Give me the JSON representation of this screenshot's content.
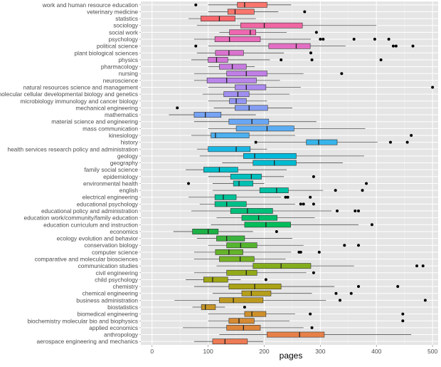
{
  "chart_data": {
    "type": "boxplot",
    "orientation": "horizontal",
    "xlabel": "pages",
    "ylabel": "",
    "xlim": [
      -20,
      510
    ],
    "x_ticks": [
      0,
      100,
      200,
      300,
      400,
      500
    ],
    "grid": true,
    "legend": "none",
    "panel_color": "#e5e5e5",
    "median_color": "#222222",
    "whisker_color": "#555555",
    "outlier_color": "#000000",
    "categories": [
      {
        "label": "work and human resource education",
        "q1": 152,
        "median": 165,
        "q3": 205,
        "lo": 100,
        "hi": 248,
        "outliers": [
          78
        ],
        "color": "#f8766d"
      },
      {
        "label": "veterinary medicine",
        "q1": 135,
        "median": 148,
        "q3": 182,
        "lo": 100,
        "hi": 225,
        "outliers": [
          272
        ],
        "color": "#f8766d"
      },
      {
        "label": "statistics",
        "q1": 87,
        "median": 120,
        "q3": 148,
        "lo": 65,
        "hi": 185,
        "outliers": [],
        "color": "#f7696e"
      },
      {
        "label": "sociology",
        "q1": 158,
        "median": 200,
        "q3": 268,
        "lo": 80,
        "hi": 400,
        "outliers": [],
        "color": "#f066a3"
      },
      {
        "label": "social work",
        "q1": 138,
        "median": 175,
        "q3": 185,
        "lo": 120,
        "hi": 240,
        "outliers": [
          293
        ],
        "color": "#ee67b0"
      },
      {
        "label": "psychology",
        "q1": 112,
        "median": 138,
        "q3": 193,
        "lo": 75,
        "hi": 283,
        "outliers": [
          300,
          305,
          360,
          397,
          422
        ],
        "color": "#e96dba"
      },
      {
        "label": "political science",
        "q1": 208,
        "median": 257,
        "q3": 282,
        "lo": 100,
        "hi": 345,
        "outliers": [
          78,
          430,
          435,
          465
        ],
        "color": "#e36fc4"
      },
      {
        "label": "plant biological sciences",
        "q1": 113,
        "median": 137,
        "q3": 163,
        "lo": 80,
        "hi": 235,
        "outliers": [
          283
        ],
        "color": "#da72cf"
      },
      {
        "label": "physics",
        "q1": 100,
        "median": 115,
        "q3": 135,
        "lo": 70,
        "hi": 210,
        "outliers": [
          230,
          285,
          408
        ],
        "color": "#d275d6"
      },
      {
        "label": "pharmacology",
        "q1": 120,
        "median": 143,
        "q3": 168,
        "lo": 100,
        "hi": 183,
        "outliers": [],
        "color": "#c77be0"
      },
      {
        "label": "nursing",
        "q1": 133,
        "median": 168,
        "q3": 205,
        "lo": 75,
        "hi": 270,
        "outliers": [
          338
        ],
        "color": "#c07fe5"
      },
      {
        "label": "neuroscience",
        "q1": 98,
        "median": 133,
        "q3": 186,
        "lo": 75,
        "hi": 228,
        "outliers": [],
        "color": "#b985ea"
      },
      {
        "label": "natural resources science and management",
        "q1": 148,
        "median": 168,
        "q3": 203,
        "lo": 100,
        "hi": 265,
        "outliers": [
          500
        ],
        "color": "#ad8bef"
      },
      {
        "label": "molecular cellular developmental biology and genetics",
        "q1": 128,
        "median": 153,
        "q3": 173,
        "lo": 90,
        "hi": 245,
        "outliers": [],
        "color": "#a08ff1"
      },
      {
        "label": "microbiology immunology and cancer biology",
        "q1": 138,
        "median": 150,
        "q3": 168,
        "lo": 100,
        "hi": 205,
        "outliers": [],
        "color": "#9396f2"
      },
      {
        "label": "mechanical engineering",
        "q1": 148,
        "median": 173,
        "q3": 206,
        "lo": 110,
        "hi": 250,
        "outliers": [
          45
        ],
        "color": "#859ef3"
      },
      {
        "label": "mathematics",
        "q1": 75,
        "median": 95,
        "q3": 123,
        "lo": 30,
        "hi": 185,
        "outliers": [],
        "color": "#76a3f4"
      },
      {
        "label": "material science and engineering",
        "q1": 137,
        "median": 178,
        "q3": 208,
        "lo": 75,
        "hi": 293,
        "outliers": [],
        "color": "#69a7f4"
      },
      {
        "label": "mass communication",
        "q1": 150,
        "median": 205,
        "q3": 253,
        "lo": 100,
        "hi": 380,
        "outliers": [],
        "color": "#5cacf3"
      },
      {
        "label": "kinesiology",
        "q1": 105,
        "median": 113,
        "q3": 173,
        "lo": 70,
        "hi": 255,
        "outliers": [
          462
        ],
        "color": "#4eb0ef"
      },
      {
        "label": "history",
        "q1": 275,
        "median": 297,
        "q3": 330,
        "lo": 188,
        "hi": 402,
        "outliers": [
          185,
          425,
          455
        ],
        "color": "#36b4ea"
      },
      {
        "label": "health services research policy and administration",
        "q1": 100,
        "median": 150,
        "q3": 175,
        "lo": 80,
        "hi": 205,
        "outliers": [],
        "color": "#1ab7e3"
      },
      {
        "label": "geology",
        "q1": 163,
        "median": 183,
        "q3": 257,
        "lo": 85,
        "hi": 378,
        "outliers": [],
        "color": "#00badb"
      },
      {
        "label": "geography",
        "q1": 180,
        "median": 218,
        "q3": 257,
        "lo": 125,
        "hi": 340,
        "outliers": [],
        "color": "#00bcd2"
      },
      {
        "label": "family social science",
        "q1": 92,
        "median": 120,
        "q3": 153,
        "lo": 60,
        "hi": 240,
        "outliers": [],
        "color": "#00bdc7"
      },
      {
        "label": "epidemiology",
        "q1": 140,
        "median": 177,
        "q3": 195,
        "lo": 100,
        "hi": 235,
        "outliers": [
          288
        ],
        "color": "#00bfbd"
      },
      {
        "label": "environmental health",
        "q1": 145,
        "median": 155,
        "q3": 180,
        "lo": 108,
        "hi": 200,
        "outliers": [
          65,
          382
        ],
        "color": "#00c0b1"
      },
      {
        "label": "english",
        "q1": 192,
        "median": 222,
        "q3": 243,
        "lo": 108,
        "hi": 305,
        "outliers": [
          327,
          375
        ],
        "color": "#00c1a4"
      },
      {
        "label": "electrical engineering",
        "q1": 112,
        "median": 127,
        "q3": 150,
        "lo": 65,
        "hi": 230,
        "outliers": [
          238,
          242,
          282
        ],
        "color": "#00c197"
      },
      {
        "label": "educational psychology",
        "q1": 112,
        "median": 133,
        "q3": 168,
        "lo": 85,
        "hi": 255,
        "outliers": [
          265,
          270,
          288
        ],
        "color": "#00c089"
      },
      {
        "label": "educational policy and administration",
        "q1": 140,
        "median": 170,
        "q3": 215,
        "lo": 70,
        "hi": 320,
        "outliers": [
          330,
          362,
          368
        ],
        "color": "#00bf7a"
      },
      {
        "label": "education work/community/family education",
        "q1": 160,
        "median": 190,
        "q3": 223,
        "lo": 115,
        "hi": 290,
        "outliers": [],
        "color": "#00be6a"
      },
      {
        "label": "education curriculum and instruction",
        "q1": 165,
        "median": 203,
        "q3": 247,
        "lo": 105,
        "hi": 368,
        "outliers": [
          392
        ],
        "color": "#00bc59"
      },
      {
        "label": "economics",
        "q1": 72,
        "median": 100,
        "q3": 118,
        "lo": 38,
        "hi": 180,
        "outliers": [
          222
        ],
        "color": "#1cb046"
      },
      {
        "label": "ecology evolution and behavior",
        "q1": 115,
        "median": 133,
        "q3": 165,
        "lo": 80,
        "hi": 250,
        "outliers": [],
        "color": "#3bb33c"
      },
      {
        "label": "conservation biology",
        "q1": 133,
        "median": 158,
        "q3": 187,
        "lo": 100,
        "hi": 270,
        "outliers": [
          343,
          368
        ],
        "color": "#54b52e"
      },
      {
        "label": "computer science",
        "q1": 113,
        "median": 137,
        "q3": 162,
        "lo": 75,
        "hi": 248,
        "outliers": [
          262,
          265,
          298
        ],
        "color": "#65b32a"
      },
      {
        "label": "comparative and molecular biosciences",
        "q1": 120,
        "median": 157,
        "q3": 182,
        "lo": 75,
        "hi": 238,
        "outliers": [],
        "color": "#75b124"
      },
      {
        "label": "communication studies",
        "q1": 180,
        "median": 230,
        "q3": 283,
        "lo": 115,
        "hi": 360,
        "outliers": [
          472,
          483
        ],
        "color": "#84ad1d"
      },
      {
        "label": "civil engineering",
        "q1": 133,
        "median": 168,
        "q3": 187,
        "lo": 75,
        "hi": 275,
        "outliers": [
          288
        ],
        "color": "#92aa18"
      },
      {
        "label": "child psychology",
        "q1": 92,
        "median": 108,
        "q3": 135,
        "lo": 60,
        "hi": 158,
        "outliers": [
          203
        ],
        "color": "#9fa614"
      },
      {
        "label": "chemistry",
        "q1": 137,
        "median": 183,
        "q3": 230,
        "lo": 75,
        "hi": 325,
        "outliers": [
          368,
          438
        ],
        "color": "#aaa215"
      },
      {
        "label": "chemical engineering",
        "q1": 160,
        "median": 177,
        "q3": 212,
        "lo": 108,
        "hi": 285,
        "outliers": [
          328,
          355
        ],
        "color": "#b59e1b"
      },
      {
        "label": "business administration",
        "q1": 120,
        "median": 145,
        "q3": 198,
        "lo": 40,
        "hi": 310,
        "outliers": [
          335,
          487
        ],
        "color": "#be9920"
      },
      {
        "label": "biostatistics",
        "q1": 88,
        "median": 95,
        "q3": 113,
        "lo": 72,
        "hi": 130,
        "outliers": [
          165
        ],
        "color": "#c69526"
      },
      {
        "label": "biomedical engineering",
        "q1": 165,
        "median": 178,
        "q3": 203,
        "lo": 100,
        "hi": 255,
        "outliers": [
          282,
          447
        ],
        "color": "#cd902c"
      },
      {
        "label": "biochemistry molecular bio and biophysics",
        "q1": 137,
        "median": 155,
        "q3": 182,
        "lo": 100,
        "hi": 245,
        "outliers": [
          447
        ],
        "color": "#d58a33"
      },
      {
        "label": "applied economics",
        "q1": 133,
        "median": 163,
        "q3": 193,
        "lo": 55,
        "hi": 270,
        "outliers": [
          285
        ],
        "color": "#dc853b"
      },
      {
        "label": "anthropology",
        "q1": 205,
        "median": 263,
        "q3": 307,
        "lo": 120,
        "hi": 462,
        "outliers": [],
        "color": "#e68048"
      },
      {
        "label": "aerospace engineering and mechanics",
        "q1": 108,
        "median": 130,
        "q3": 170,
        "lo": 75,
        "hi": 198,
        "outliers": [],
        "color": "#ee7b55"
      }
    ]
  }
}
